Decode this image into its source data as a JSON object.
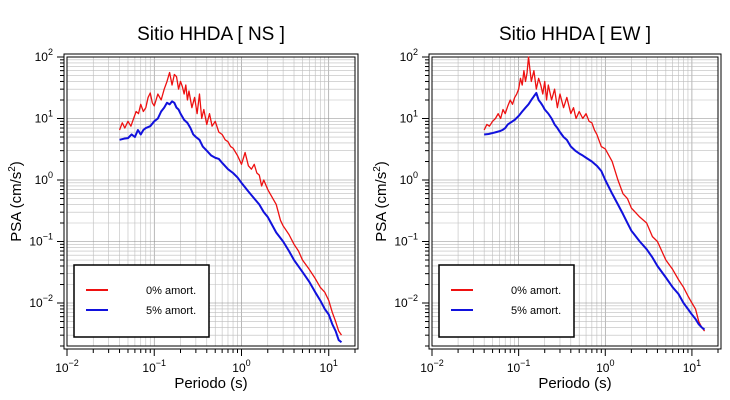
{
  "chart_data": [
    {
      "type": "line",
      "title": "Sitio HHDA [ NS ]",
      "xlabel": "Periodo (s)",
      "ylabel_main": "PSA (cm/s",
      "ylabel_sup": "2",
      "ylabel_close": ")",
      "xscale": "log",
      "yscale": "log",
      "xlim": [
        0.01,
        20
      ],
      "ylim": [
        0.002,
        100
      ],
      "grid": true,
      "legend_position": "bottom-left",
      "x_ticks": [
        {
          "base": "10",
          "exp": "−2"
        },
        {
          "base": "10",
          "exp": "−1"
        },
        {
          "base": "10",
          "exp": "0"
        },
        {
          "base": "10",
          "exp": "1"
        }
      ],
      "y_ticks": [
        {
          "base": "10",
          "exp": "−2"
        },
        {
          "base": "10",
          "exp": "−1"
        },
        {
          "base": "10",
          "exp": "0"
        },
        {
          "base": "10",
          "exp": "1"
        },
        {
          "base": "10",
          "exp": "2"
        }
      ],
      "series": [
        {
          "name": "0% amort.",
          "color": "#ee1111",
          "x": [
            0.04,
            0.043,
            0.046,
            0.05,
            0.054,
            0.058,
            0.062,
            0.066,
            0.07,
            0.075,
            0.08,
            0.085,
            0.09,
            0.095,
            0.1,
            0.11,
            0.12,
            0.13,
            0.14,
            0.15,
            0.16,
            0.17,
            0.18,
            0.19,
            0.2,
            0.21,
            0.22,
            0.23,
            0.24,
            0.25,
            0.27,
            0.29,
            0.31,
            0.33,
            0.35,
            0.37,
            0.4,
            0.43,
            0.46,
            0.5,
            0.55,
            0.6,
            0.65,
            0.7,
            0.75,
            0.8,
            0.9,
            1.0,
            1.1,
            1.2,
            1.3,
            1.4,
            1.5,
            1.6,
            1.7,
            1.8,
            2.0,
            2.2,
            2.5,
            2.8,
            3.0,
            3.5,
            4.0,
            4.5,
            5.0,
            6.0,
            7.0,
            8.0,
            9.0,
            10.0,
            11.0,
            12.0,
            13.0,
            14.0
          ],
          "y": [
            6.5,
            8.5,
            7.0,
            9.0,
            7.5,
            10.0,
            13.0,
            12.0,
            17.0,
            13.0,
            15.0,
            22.0,
            26.0,
            18.0,
            16.0,
            25.0,
            20.0,
            30.0,
            40.0,
            56.0,
            35.0,
            52.0,
            48.0,
            30.0,
            40.0,
            33.0,
            25.0,
            35.0,
            20.0,
            28.0,
            15.0,
            22.0,
            12.0,
            25.0,
            10.0,
            14.0,
            8.0,
            12.0,
            7.5,
            9.0,
            6.0,
            5.5,
            4.5,
            4.2,
            3.5,
            3.3,
            2.5,
            1.8,
            2.8,
            1.7,
            1.5,
            1.8,
            1.3,
            1.2,
            0.8,
            1.0,
            0.7,
            0.55,
            0.4,
            0.22,
            0.18,
            0.13,
            0.09,
            0.07,
            0.05,
            0.035,
            0.025,
            0.018,
            0.015,
            0.011,
            0.007,
            0.005,
            0.0035,
            0.003
          ]
        },
        {
          "name": "5% amort.",
          "color": "#1111dd",
          "x": [
            0.04,
            0.045,
            0.05,
            0.055,
            0.06,
            0.065,
            0.07,
            0.075,
            0.08,
            0.09,
            0.1,
            0.11,
            0.12,
            0.13,
            0.14,
            0.15,
            0.16,
            0.17,
            0.18,
            0.19,
            0.2,
            0.22,
            0.24,
            0.26,
            0.28,
            0.3,
            0.33,
            0.36,
            0.4,
            0.45,
            0.5,
            0.55,
            0.6,
            0.7,
            0.8,
            0.9,
            1.0,
            1.2,
            1.4,
            1.6,
            1.8,
            2.0,
            2.5,
            3.0,
            3.5,
            4.0,
            5.0,
            6.0,
            7.0,
            8.0,
            9.0,
            10.0,
            11.0,
            12.0,
            13.0,
            14.0
          ],
          "y": [
            4.5,
            4.7,
            4.8,
            5.5,
            5.0,
            6.5,
            5.5,
            6.5,
            7.0,
            7.5,
            9.0,
            10.0,
            13.0,
            15.0,
            18.0,
            17.0,
            19.0,
            18.0,
            15.0,
            14.0,
            12.0,
            9.5,
            8.5,
            7.0,
            5.5,
            5.0,
            4.5,
            3.5,
            3.0,
            2.5,
            2.3,
            2.2,
            1.9,
            1.5,
            1.3,
            1.1,
            0.9,
            0.65,
            0.5,
            0.4,
            0.3,
            0.25,
            0.14,
            0.1,
            0.07,
            0.05,
            0.032,
            0.022,
            0.015,
            0.011,
            0.008,
            0.0065,
            0.0045,
            0.0035,
            0.0025,
            0.0023
          ]
        }
      ]
    },
    {
      "type": "line",
      "title": "Sitio HHDA [ EW ]",
      "xlabel": "Periodo (s)",
      "ylabel_main": "PSA (cm/s",
      "ylabel_sup": "2",
      "ylabel_close": ")",
      "xscale": "log",
      "yscale": "log",
      "xlim": [
        0.01,
        20
      ],
      "ylim": [
        0.002,
        100
      ],
      "grid": true,
      "legend_position": "bottom-left",
      "x_ticks": [
        {
          "base": "10",
          "exp": "−2"
        },
        {
          "base": "10",
          "exp": "−1"
        },
        {
          "base": "10",
          "exp": "0"
        },
        {
          "base": "10",
          "exp": "1"
        }
      ],
      "y_ticks": [
        {
          "base": "10",
          "exp": "−2"
        },
        {
          "base": "10",
          "exp": "−1"
        },
        {
          "base": "10",
          "exp": "0"
        },
        {
          "base": "10",
          "exp": "1"
        },
        {
          "base": "10",
          "exp": "2"
        }
      ],
      "series": [
        {
          "name": "0% amort.",
          "color": "#ee1111",
          "x": [
            0.04,
            0.043,
            0.046,
            0.05,
            0.054,
            0.058,
            0.062,
            0.066,
            0.07,
            0.075,
            0.08,
            0.085,
            0.09,
            0.095,
            0.1,
            0.105,
            0.11,
            0.115,
            0.12,
            0.125,
            0.13,
            0.14,
            0.15,
            0.16,
            0.17,
            0.18,
            0.19,
            0.2,
            0.21,
            0.22,
            0.24,
            0.26,
            0.28,
            0.3,
            0.33,
            0.36,
            0.4,
            0.43,
            0.46,
            0.5,
            0.55,
            0.6,
            0.65,
            0.7,
            0.75,
            0.8,
            0.9,
            1.0,
            1.2,
            1.4,
            1.6,
            1.8,
            2.0,
            2.5,
            3.0,
            3.5,
            4.0,
            5.0,
            6.0,
            7.0,
            8.0,
            9.0,
            10.0,
            11.0,
            12.0,
            13.0,
            14.0
          ],
          "y": [
            6.5,
            8.0,
            7.5,
            9.0,
            10.0,
            12.0,
            10.0,
            14.0,
            12.0,
            16.0,
            20.0,
            17.0,
            22.0,
            25.0,
            30.0,
            45.0,
            35.0,
            60.0,
            40.0,
            55.0,
            100.0,
            40.0,
            60.0,
            30.0,
            45.0,
            35.0,
            25.0,
            40.0,
            20.0,
            35.0,
            20.0,
            30.0,
            15.0,
            25.0,
            15.0,
            22.0,
            12.0,
            15.0,
            10.0,
            13.0,
            10.0,
            12.0,
            9.0,
            8.5,
            6.5,
            5.5,
            3.5,
            3.2,
            2.0,
            1.0,
            0.6,
            0.5,
            0.35,
            0.25,
            0.2,
            0.12,
            0.1,
            0.05,
            0.035,
            0.024,
            0.018,
            0.013,
            0.01,
            0.008,
            0.005,
            0.004,
            0.0035
          ]
        },
        {
          "name": "5% amort.",
          "color": "#1111dd",
          "x": [
            0.04,
            0.045,
            0.05,
            0.055,
            0.06,
            0.065,
            0.07,
            0.075,
            0.08,
            0.09,
            0.1,
            0.11,
            0.12,
            0.13,
            0.14,
            0.15,
            0.16,
            0.17,
            0.18,
            0.19,
            0.2,
            0.22,
            0.24,
            0.26,
            0.28,
            0.3,
            0.33,
            0.36,
            0.4,
            0.45,
            0.5,
            0.55,
            0.6,
            0.7,
            0.8,
            0.9,
            1.0,
            1.2,
            1.4,
            1.6,
            1.8,
            2.0,
            2.5,
            3.0,
            3.5,
            4.0,
            5.0,
            6.0,
            7.0,
            8.0,
            9.0,
            10.0,
            11.0,
            12.0,
            13.0,
            14.0
          ],
          "y": [
            5.5,
            5.6,
            5.8,
            6.0,
            6.2,
            6.5,
            7.0,
            8.0,
            8.5,
            9.5,
            11.0,
            13.0,
            15.0,
            17.0,
            20.0,
            23.0,
            26.0,
            20.0,
            18.0,
            16.0,
            14.0,
            12.0,
            10.0,
            8.0,
            7.0,
            6.0,
            5.0,
            4.5,
            3.5,
            3.0,
            2.7,
            2.5,
            2.3,
            2.0,
            1.7,
            1.4,
            1.0,
            0.6,
            0.4,
            0.28,
            0.2,
            0.15,
            0.1,
            0.075,
            0.055,
            0.04,
            0.026,
            0.018,
            0.014,
            0.01,
            0.008,
            0.0065,
            0.0055,
            0.0045,
            0.004,
            0.0037
          ]
        }
      ]
    }
  ]
}
